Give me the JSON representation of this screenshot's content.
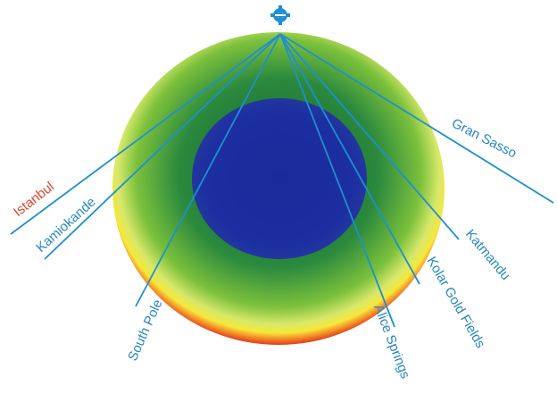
{
  "diagram": {
    "sites": [
      {
        "key": "istanbul",
        "label": "Istanbul",
        "color": "#e0452a"
      },
      {
        "key": "kamiokande",
        "label": "Kamiokande",
        "color": "#2a86c8"
      },
      {
        "key": "south-pole",
        "label": "South Pole",
        "color": "#2a86c8"
      },
      {
        "key": "alice-springs",
        "label": "Alice Springs",
        "color": "#2a86c8"
      },
      {
        "key": "kolar-gold-fields",
        "label": "Kolar Gold Fields",
        "color": "#2a86c8"
      },
      {
        "key": "katmandu",
        "label": "Katmandu",
        "color": "#2a86c8"
      },
      {
        "key": "gran-sasso",
        "label": "Gran Sasso",
        "color": "#2a86c8"
      }
    ],
    "colors": {
      "core": "#1c2fa0",
      "mantle_inner": "#1f7a3a",
      "mantle_outer": "#8ecb3a",
      "crust_yellow": "#f3e23a",
      "crust_red": "#e23a1c",
      "line": "#1f8fd0"
    },
    "source_icon": "gear-icon"
  }
}
